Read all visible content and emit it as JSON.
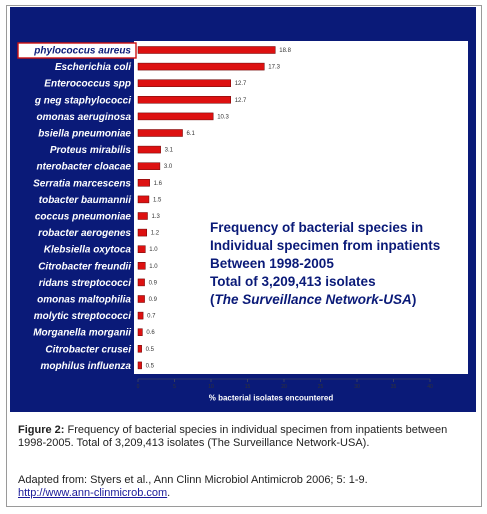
{
  "chart_data": {
    "type": "bar",
    "orientation": "horizontal",
    "categories": [
      "phylococcus aureus",
      "Escherichia coli",
      "Enterococcus spp",
      "g neg staphylococci",
      "omonas aeruginosa",
      "bsiella pneumoniae",
      "Proteus mirabilis",
      "nterobacter cloacae",
      "Serratia marcescens",
      "tobacter baumannii",
      "coccus pneumoniae",
      "robacter aerogenes",
      "Klebsiella oxytoca",
      "Citrobacter freundii",
      "ridans streptococci",
      "omonas maltophilia",
      "molytic streptococci",
      "Morganella morganii",
      "Citrobacter crusei",
      "mophilus influenza"
    ],
    "values": [
      18.8,
      17.3,
      12.7,
      12.7,
      10.3,
      6.1,
      3.1,
      3.0,
      1.6,
      1.5,
      1.3,
      1.2,
      1.0,
      1.0,
      0.9,
      0.9,
      0.7,
      0.6,
      0.5,
      0.5
    ],
    "value_labels": [
      "18.8",
      "17.3",
      "12.7",
      "12.7",
      "10.3",
      "6.1",
      "3.1",
      "3.0",
      "1.6",
      "1.5",
      "1.3",
      "1.2",
      "1.0",
      "1.0",
      "0.9",
      "0.9",
      "0.7",
      "0.6",
      "0.5",
      "0.5"
    ],
    "highlighted_category": "phylococcus aureus",
    "x_ticks": [
      "0",
      "5",
      "10",
      "15",
      "20",
      "25",
      "30",
      "35",
      "40"
    ],
    "xlim": [
      0,
      40
    ],
    "xlabel": "% bacterial isolates encountered",
    "bar_color": "#dd1111",
    "panel_color": "#0a1a78",
    "plot_bg": "#ffffff",
    "grid": false
  },
  "legend_text": {
    "line1": "Frequency of bacterial species in",
    "line2": "Individual specimen from inpatients",
    "line3": "Between 1998-2005",
    "line4": "Total of 3,209,413 isolates",
    "line5_open": "(",
    "line5_italic": "The Surveillance Network-USA",
    "line5_close": ")"
  },
  "caption": {
    "label": "Figure 2:",
    "text": " Frequency of bacterial species in individual specimen from inpatients between 1998-2005. Total of 3,209,413 isolates (The Surveillance Network-USA)."
  },
  "source": {
    "text": "Adapted from: Styers et al., Ann Clinn Microbiol Antimicrob 2006; 5: 1-9.",
    "link": "http://www.ann-clinmicrob.com",
    "end": "."
  }
}
